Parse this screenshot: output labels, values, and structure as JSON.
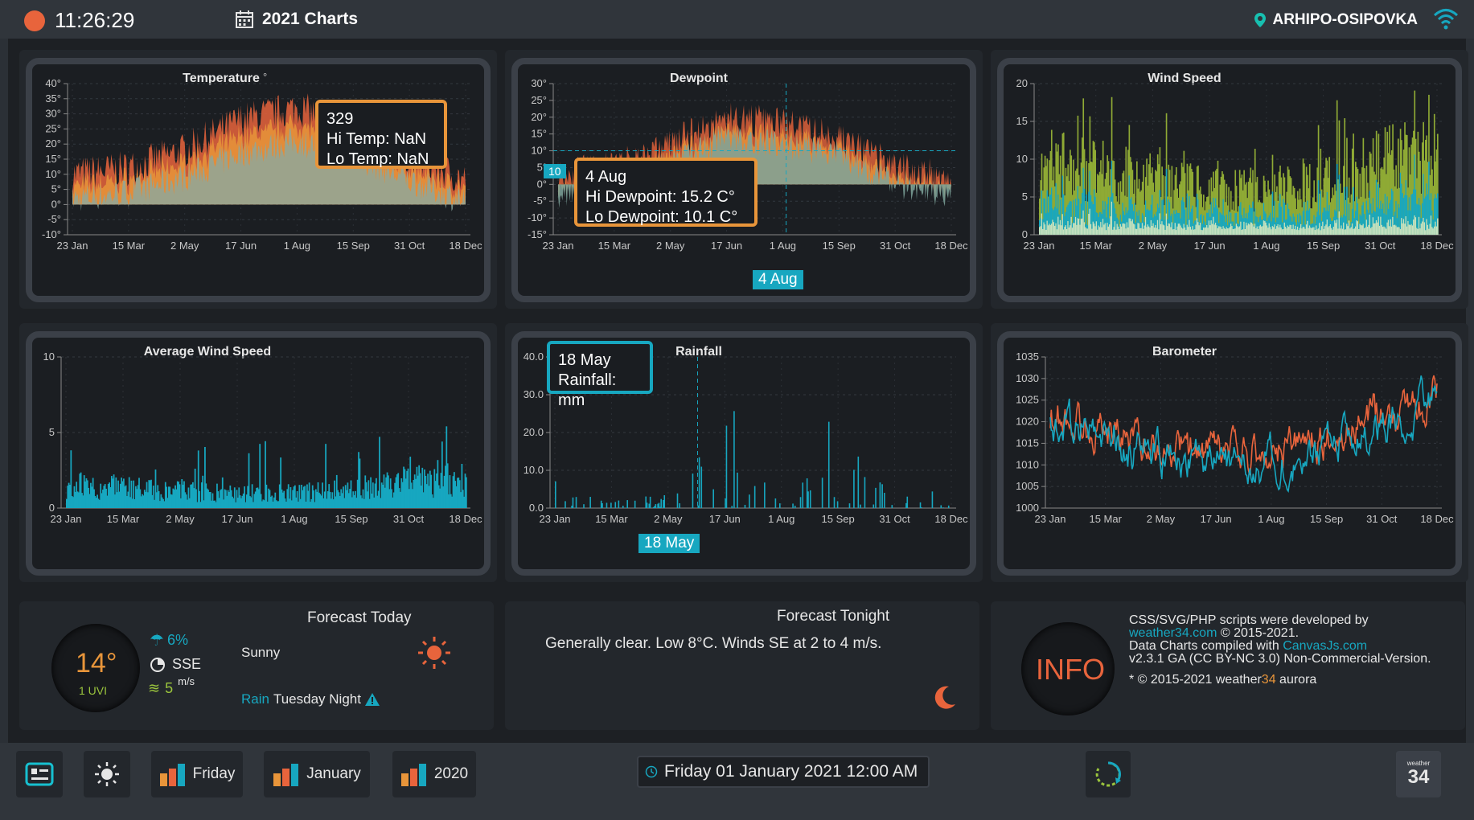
{
  "header": {
    "time": "11:26:29",
    "charts_title": "2021 Charts",
    "location": "ARHIPO-OSIPOVKA"
  },
  "months": [
    "23 Jan",
    "15 Mar",
    "2 May",
    "17 Jun",
    "1 Aug",
    "15 Sep",
    "31 Oct",
    "18 Dec"
  ],
  "charts": {
    "temperature": {
      "title": "Temperature",
      "unit_mark": "°",
      "ylabels": [
        "40°",
        "35°",
        "30°",
        "25°",
        "20°",
        "15°",
        "10°",
        "5°",
        "0°",
        "-5°",
        "-10°"
      ]
    },
    "dewpoint": {
      "title": "Dewpoint",
      "ylabels": [
        "30°",
        "25°",
        "20°",
        "15°",
        "10°",
        "5°",
        "0°",
        "-5°",
        "-10°",
        "-15°"
      ]
    },
    "wind_speed": {
      "title": "Wind Speed",
      "ylabels": [
        "20",
        "15",
        "10",
        "5",
        "0"
      ]
    },
    "avg_wind": {
      "title": "Average Wind Speed",
      "ylabels": [
        "10",
        "5",
        "0"
      ]
    },
    "rainfall": {
      "title": "Rainfall",
      "ylabels": [
        "40.0",
        "30.0",
        "20.0",
        "10.0",
        "0.0"
      ]
    },
    "barometer": {
      "title": "Barometer",
      "ylabels": [
        "1035",
        "1030",
        "1025",
        "1020",
        "1015",
        "1010",
        "1005",
        "1000"
      ]
    }
  },
  "chart_data": [
    {
      "type": "area",
      "title": "Temperature",
      "ylim": [
        -10,
        40
      ],
      "x": [
        "23 Jan",
        "15 Mar",
        "2 May",
        "17 Jun",
        "1 Aug",
        "15 Sep",
        "31 Oct",
        "18 Dec"
      ],
      "series": [
        {
          "name": "Hi Temp",
          "values": [
            10,
            12,
            18,
            28,
            32,
            26,
            16,
            8
          ]
        },
        {
          "name": "Lo Temp",
          "values": [
            2,
            4,
            9,
            17,
            21,
            16,
            8,
            1
          ]
        }
      ]
    },
    {
      "type": "area",
      "title": "Dewpoint",
      "ylim": [
        -15,
        30
      ],
      "x": [
        "23 Jan",
        "15 Mar",
        "2 May",
        "17 Jun",
        "1 Aug",
        "15 Sep",
        "31 Oct",
        "18 Dec"
      ],
      "series": [
        {
          "name": "Hi Dewpoint",
          "values": [
            3,
            5,
            12,
            20,
            18,
            14,
            5,
            2
          ]
        },
        {
          "name": "Lo Dewpoint",
          "values": [
            -3,
            -1,
            6,
            14,
            12,
            9,
            0,
            -3
          ]
        }
      ]
    },
    {
      "type": "bar",
      "title": "Wind Speed",
      "ylim": [
        0,
        20
      ],
      "x": [
        "23 Jan",
        "15 Mar",
        "2 May",
        "17 Jun",
        "1 Aug",
        "15 Sep",
        "31 Oct",
        "18 Dec"
      ],
      "values": [
        8,
        7,
        6,
        5,
        5,
        6,
        8,
        9
      ]
    },
    {
      "type": "bar",
      "title": "Average Wind Speed",
      "ylim": [
        0,
        10
      ],
      "x": [
        "23 Jan",
        "15 Mar",
        "2 May",
        "17 Jun",
        "1 Aug",
        "15 Sep",
        "31 Oct",
        "18 Dec"
      ],
      "values": [
        1.5,
        1.2,
        1.0,
        0.9,
        0.9,
        1.1,
        1.6,
        1.8
      ]
    },
    {
      "type": "bar",
      "title": "Rainfall",
      "ylim": [
        0,
        40
      ],
      "x": [
        "23 Jan",
        "15 Mar",
        "2 May",
        "17 Jun",
        "1 Aug",
        "15 Sep",
        "31 Oct",
        "18 Dec"
      ],
      "values": [
        8,
        4,
        6,
        30,
        3,
        30,
        6,
        4
      ]
    },
    {
      "type": "line",
      "title": "Barometer",
      "ylim": [
        1000,
        1035
      ],
      "x": [
        "23 Jan",
        "15 Mar",
        "2 May",
        "17 Jun",
        "1 Aug",
        "15 Sep",
        "31 Oct",
        "18 Dec"
      ],
      "series": [
        {
          "values": [
            1022,
            1018,
            1014,
            1012,
            1013,
            1016,
            1022,
            1026
          ]
        },
        {
          "values": [
            1020,
            1016,
            1012,
            1010,
            1011,
            1014,
            1020,
            1024
          ]
        }
      ]
    }
  ],
  "tooltips": {
    "temperature": {
      "day": "329",
      "hi": "Hi Temp:  NaN",
      "lo": "Lo Temp:  NaN"
    },
    "dewpoint": {
      "day": "4 Aug",
      "hi": "Hi Dewpoint:  15.2 C°",
      "lo": "Lo Dewpoint:  10.1 C°",
      "badge_x": "4 Aug",
      "badge_y": "10"
    },
    "rainfall": {
      "day": "18 May",
      "value": "Rainfall:   mm",
      "badge_x": "18 May"
    }
  },
  "forecast_today": {
    "title": "Forecast Today",
    "temp": "14°",
    "uvi": "1 UVI",
    "rain_chance": "6%",
    "wind_dir": "SSE",
    "wind_speed": "5",
    "wind_unit": "m/s",
    "condition": "Sunny",
    "rain_word": "Rain",
    "rain_when": "Tuesday Night",
    "icons": [
      "umbrella-icon",
      "compass-icon",
      "wind-icon",
      "sun-icon",
      "warning-icon"
    ]
  },
  "forecast_tonight": {
    "title": "Forecast Tonight",
    "text": "Generally clear. Low 8°C. Winds SE at 2 to 4 m/s."
  },
  "info": {
    "label": "INFO",
    "line1": "CSS/SVG/PHP scripts were developed by",
    "link1": "weather34.com",
    "line1b": " © 2015-2021.",
    "line2": "Data Charts compiled with ",
    "link2": "CanvasJs.com",
    "line3": "v2.3.1 GA (CC BY-NC 3.0) Non-Commercial-Version.",
    "line4a": "* © 2015-2021 weather",
    "line4b": "34",
    "line4c": " aurora"
  },
  "bottom": {
    "btn_friday": "Friday",
    "btn_january": "January",
    "btn_2020": "2020",
    "datetime": "Friday 01 January 2021 12:00 AM",
    "logo_small": "weather",
    "logo_num": "34"
  },
  "colors": {
    "orange": "#e8953a",
    "red": "#e8643c",
    "teal": "#17a7c0",
    "green": "#9bc53d",
    "bg": "#1d2024"
  }
}
